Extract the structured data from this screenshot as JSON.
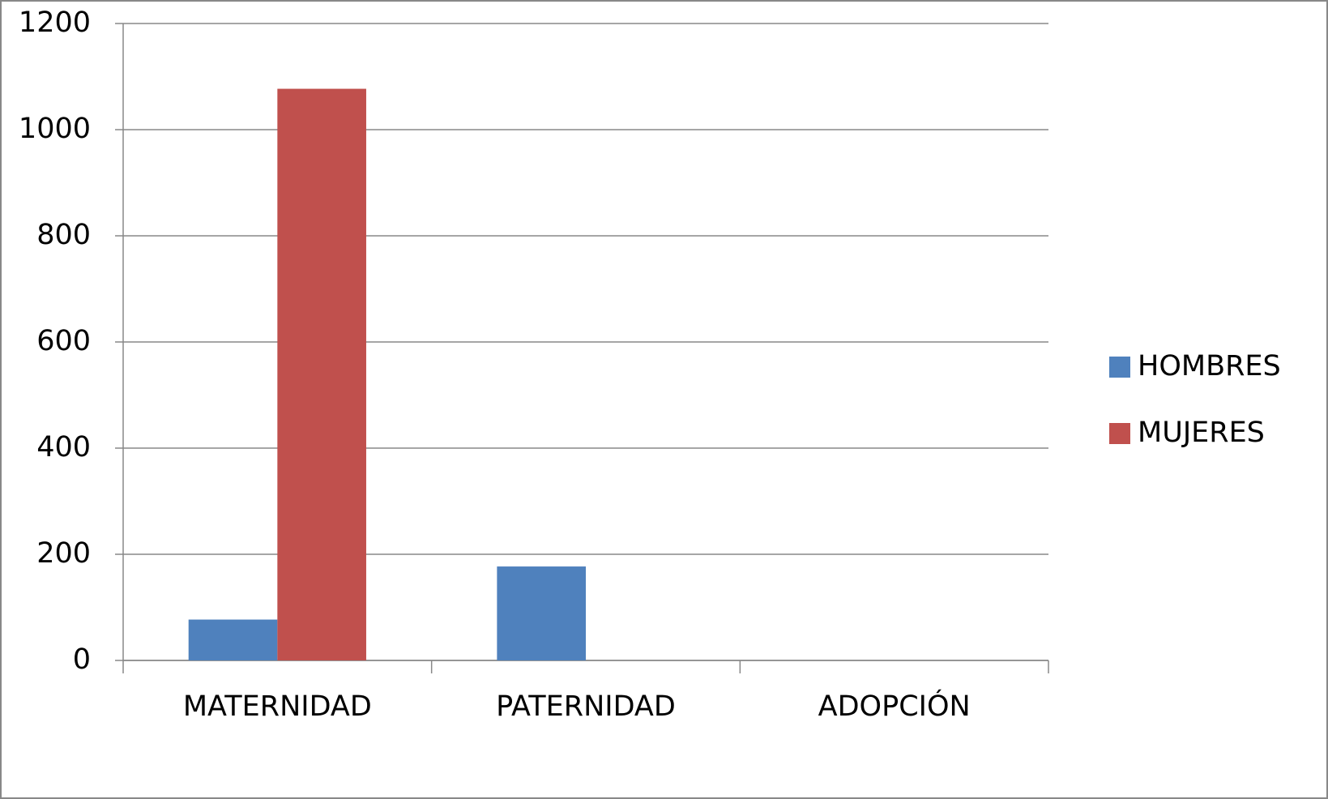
{
  "chart_data": {
    "type": "bar",
    "categories": [
      "MATERNIDAD",
      "PATERNIDAD",
      "ADOPCIÓN"
    ],
    "series": [
      {
        "name": "HOMBRES",
        "color": "#4f81bd",
        "values": [
          77,
          177,
          0
        ]
      },
      {
        "name": "MUJERES",
        "color": "#c0504d",
        "values": [
          1077,
          0,
          0
        ]
      }
    ],
    "ylim": [
      0,
      1200
    ],
    "yticks": [
      0,
      200,
      400,
      600,
      800,
      1000,
      1200
    ],
    "grid": true,
    "legend": "right"
  }
}
